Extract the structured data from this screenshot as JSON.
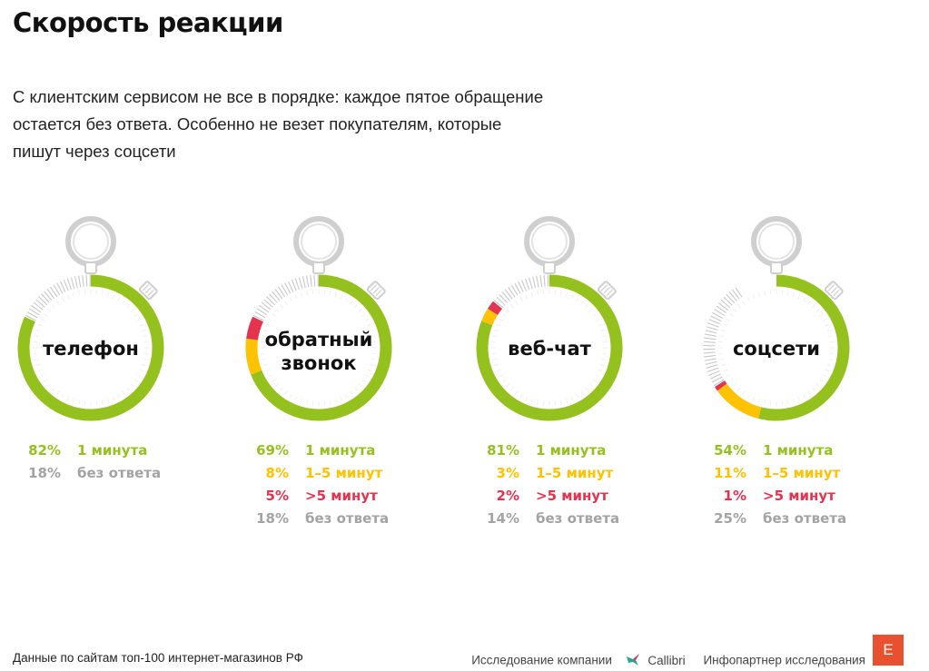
{
  "title": "Скорость реакции",
  "subtitle_lines": [
    "С клиентским сервисом не все в порядке: каждое пятое обращение",
    "остается без ответа. Особенно не везет покупателям, которые",
    "пишут через соцсети"
  ],
  "colors": {
    "one_min": "#95c11f",
    "one_five": "#fec200",
    "over_five": "#e4334f",
    "no_answer": "#a3a3a3",
    "hatch": "#c8c8c8"
  },
  "chart_data": {
    "type": "pie",
    "categories": [
      "1 минута",
      "1–5 минут",
      ">5 минут",
      "без ответа"
    ],
    "series": [
      {
        "name": "телефон",
        "values": [
          82,
          null,
          null,
          18
        ]
      },
      {
        "name": "обратный звонок",
        "values": [
          69,
          8,
          5,
          18
        ]
      },
      {
        "name": "веб-чат",
        "values": [
          81,
          3,
          2,
          14
        ]
      },
      {
        "name": "соцсети",
        "values": [
          54,
          11,
          1,
          25
        ]
      }
    ]
  },
  "watches": [
    {
      "label_lines": [
        "телефон"
      ],
      "rows": [
        {
          "pct": "82%",
          "cat": "1 минута",
          "key": "one_min"
        },
        {
          "pct": "18%",
          "cat": "без ответа",
          "key": "no_answer"
        }
      ]
    },
    {
      "label_lines": [
        "обратный",
        "звонок"
      ],
      "rows": [
        {
          "pct": "69%",
          "cat": "1 минута",
          "key": "one_min"
        },
        {
          "pct": "8%",
          "cat": "1–5 минут",
          "key": "one_five"
        },
        {
          "pct": "5%",
          "cat": ">5 минут",
          "key": "over_five"
        },
        {
          "pct": "18%",
          "cat": "без ответа",
          "key": "no_answer"
        }
      ]
    },
    {
      "label_lines": [
        "веб-чат"
      ],
      "rows": [
        {
          "pct": "81%",
          "cat": "1 минута",
          "key": "one_min"
        },
        {
          "pct": "3%",
          "cat": "1–5 минут",
          "key": "one_five"
        },
        {
          "pct": "2%",
          "cat": ">5 минут",
          "key": "over_five"
        },
        {
          "pct": "14%",
          "cat": "без ответа",
          "key": "no_answer"
        }
      ]
    },
    {
      "label_lines": [
        "соцсети"
      ],
      "rows": [
        {
          "pct": "54%",
          "cat": "1 минута",
          "key": "one_min"
        },
        {
          "pct": "11%",
          "cat": "1–5 минут",
          "key": "one_five"
        },
        {
          "pct": "1%",
          "cat": ">5 минут",
          "key": "over_five"
        },
        {
          "pct": "25%",
          "cat": "без ответа",
          "key": "no_answer"
        }
      ]
    }
  ],
  "footer": {
    "source": "Данные по сайтам топ-100 интернет-магазинов РФ",
    "research_by": "Исследование компании",
    "brand": "Callibri",
    "partner": "Инфопартнер исследования",
    "partner_logo_letter": "E"
  }
}
